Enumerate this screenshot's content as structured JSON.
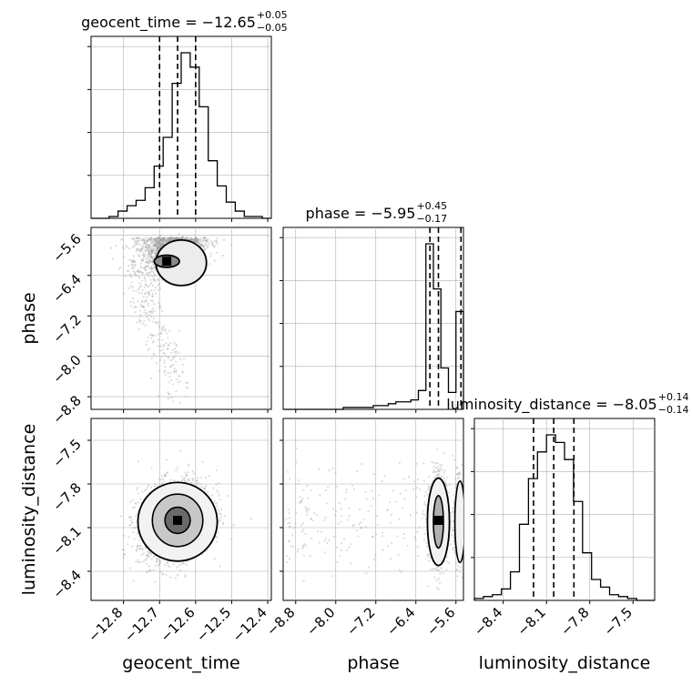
{
  "chart_data": {
    "type": "corner",
    "parameters": [
      {
        "name": "geocent_time",
        "title_main": "geocent_time = −12.65",
        "title_sup": "+0.05",
        "title_sub": "−0.05",
        "median": -12.65,
        "q_lo": -12.7,
        "q_hi": -12.6
      },
      {
        "name": "phase",
        "title_main": "phase = −5.95",
        "title_sup": "+0.45",
        "title_sub": "−0.17",
        "median": -5.95,
        "q_lo": -6.12,
        "q_hi": -5.5
      },
      {
        "name": "luminosity_distance",
        "title_main": "luminosity_distance = −8.05",
        "title_sup": "+0.14",
        "title_sub": "−0.14",
        "median": -8.05,
        "q_lo": -8.19,
        "q_hi": -7.91
      }
    ],
    "axis_labels": {
      "x": [
        "geocent_time",
        "phase",
        "luminosity_distance"
      ],
      "y": [
        "phase",
        "luminosity_distance"
      ]
    },
    "ranges": {
      "geocent_time": [
        -12.89,
        -12.39
      ],
      "phase": [
        -9.05,
        -5.45
      ],
      "luminosity_distance": [
        -8.6,
        -7.35
      ]
    },
    "ticks": {
      "geocent_time": [
        -12.8,
        -12.7,
        -12.6,
        -12.5,
        -12.4
      ],
      "geocent_time_labels": [
        "−12.8",
        "−12.7",
        "−12.6",
        "−12.5",
        "−12.4"
      ],
      "phase": [
        -8.8,
        -8.0,
        -7.2,
        -6.4,
        -5.6
      ],
      "phase_labels": [
        "−8.8",
        "−8.0",
        "−7.2",
        "−6.4",
        "−5.6"
      ],
      "luminosity_distance": [
        -8.4,
        -8.1,
        -7.8,
        -7.5
      ],
      "luminosity_distance_labels": [
        "−8.4",
        "−8.1",
        "−7.8",
        "−7.5"
      ]
    },
    "histograms": {
      "geocent_time": [
        0,
        0,
        1,
        4,
        7,
        10,
        17,
        29,
        45,
        75,
        92,
        84,
        62,
        32,
        18,
        9,
        4,
        1,
        1,
        0
      ],
      "phase": [
        0,
        0,
        0,
        0,
        0,
        0,
        0,
        0,
        1,
        1,
        1,
        1,
        2,
        2,
        3,
        4,
        4,
        5,
        10,
        88,
        64,
        22,
        9,
        52
      ],
      "luminosity_distance": [
        1,
        2,
        3,
        6,
        15,
        40,
        64,
        78,
        87,
        83,
        74,
        52,
        25,
        11,
        7,
        3,
        2,
        1,
        0,
        0
      ]
    },
    "grid": true,
    "colors": {
      "lines": "#000000",
      "samples": "#9a9a9a",
      "grid": "#b0b0b0"
    }
  }
}
